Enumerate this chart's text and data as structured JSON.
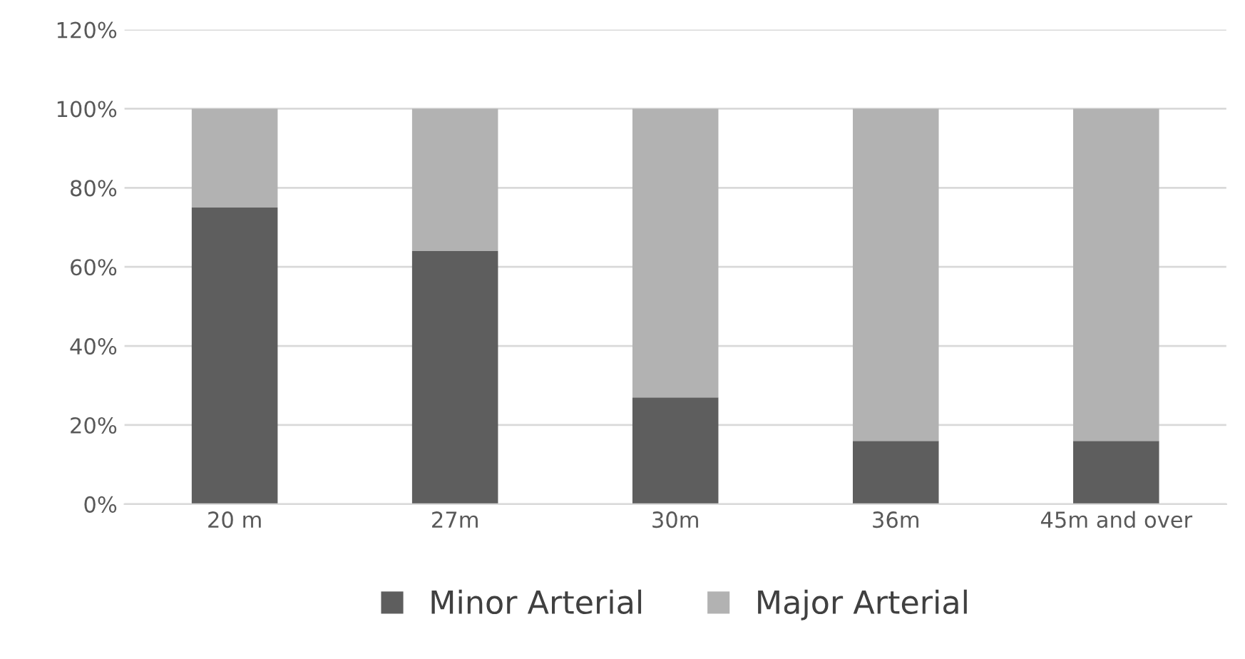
{
  "chart_data": {
    "type": "bar",
    "stacked": true,
    "categories": [
      "20 m",
      "27m",
      "30m",
      "36m",
      "45m and over"
    ],
    "series": [
      {
        "name": "Minor Arterial",
        "color": "#5e5e5e",
        "values": [
          75,
          64,
          27,
          16,
          16
        ]
      },
      {
        "name": "Major Arterial",
        "color": "#b2b2b2",
        "values": [
          25,
          36,
          73,
          84,
          84
        ]
      }
    ],
    "ylim": [
      0,
      120
    ],
    "yticks": [
      {
        "value": 0,
        "label": "0%"
      },
      {
        "value": 20,
        "label": "20%"
      },
      {
        "value": 40,
        "label": "40%"
      },
      {
        "value": 60,
        "label": "60%"
      },
      {
        "value": 80,
        "label": "80%"
      },
      {
        "value": 100,
        "label": "100%"
      },
      {
        "value": 120,
        "label": "120%"
      }
    ],
    "grid": "y",
    "legend": "bottom"
  }
}
